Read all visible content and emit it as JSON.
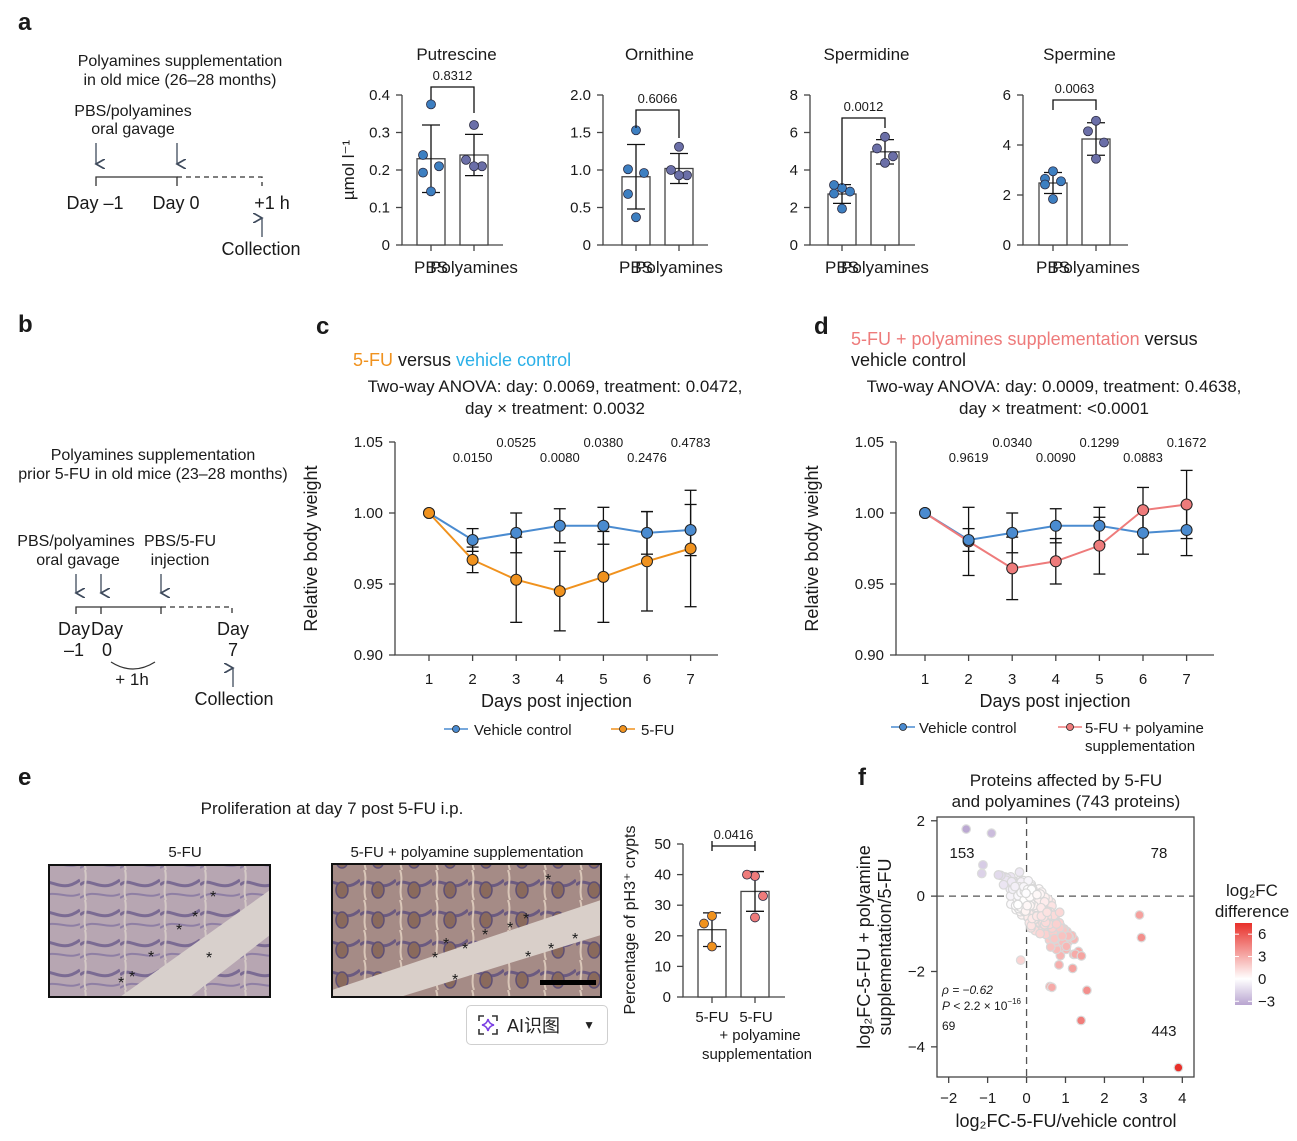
{
  "panels": {
    "a": {
      "label": "a",
      "schematic": {
        "title_line1": "Polyamines supplementation",
        "title_line2": "in old mice (26–28 months)",
        "gavage_line1": "PBS/polyamines",
        "gavage_line2": "oral gavage",
        "day_minus1": "Day –1",
        "day0": "Day 0",
        "plus1h": "+1 h",
        "collection": "Collection"
      }
    },
    "b": {
      "label": "b",
      "schematic": {
        "title_line1": "Polyamines supplementation",
        "title_line2": "prior 5-FU in old mice (23–28 months)",
        "gavage_line1": "PBS/polyamines",
        "gavage_line2": "oral gavage",
        "injection_line1": "PBS/5-FU",
        "injection_line2": "injection",
        "day_label": "Day",
        "day_minus1": "–1",
        "day0": "0",
        "day7": "7",
        "plus1h": "+ 1h",
        "collection": "Collection"
      }
    },
    "c": {
      "label": "c",
      "title_part1": "5-FU",
      "title_part2": " versus ",
      "title_part3": "vehicle control",
      "anova_line1": "Two-way ANOVA: day: 0.0069, treatment: 0.0472,",
      "anova_line2": "day × treatment: 0.0032"
    },
    "d": {
      "label": "d",
      "title_part1": "5-FU + polyamines supplementation",
      "title_part2": " versus",
      "title_part3": "vehicle control",
      "anova_line1": "Two-way ANOVA: day: 0.0009, treatment: 0.4638,",
      "anova_line2": "day × treatment: <0.0001"
    },
    "e": {
      "label": "e",
      "title": "Proliferation at day 7 post 5-FU i.p.",
      "image_left_label": "5-FU",
      "image_right_label": "5-FU + polyamine supplementation"
    },
    "f": {
      "label": "f"
    }
  },
  "colors": {
    "pbs": "#3d7fc1",
    "polyamines": "#6b6fa8",
    "vehicle": "#4a8bd0",
    "fu": "#f0921e",
    "fu_poly": "#ee7b7b",
    "title_orange": "#f0921e",
    "title_blue": "#2bb0e8",
    "title_pink": "#ee7b7b"
  },
  "overlay": {
    "ai_button_label": "AI识图",
    "ai_button_icon": "sparkle-scan-icon",
    "ai_button_chevron": "chevron-down-icon"
  },
  "chart_data": [
    {
      "id": "putrescine",
      "type": "bar",
      "title": "Putrescine",
      "ylabel": "µmol l⁻¹",
      "categories": [
        "PBS",
        "Polyamines"
      ],
      "values": [
        0.23,
        0.24
      ],
      "errors": [
        0.09,
        0.055
      ],
      "points": [
        [
          0.375,
          0.24,
          0.21,
          0.193,
          0.143
        ],
        [
          0.32,
          0.227,
          0.21,
          0.21
        ]
      ],
      "ylim": [
        0,
        0.4
      ],
      "yticks": [
        "0",
        "0.1",
        "0.2",
        "0.3",
        "0.4"
      ],
      "tickvals": [
        0,
        0.1,
        0.2,
        0.3,
        0.4
      ],
      "pvalue": "0.8312"
    },
    {
      "id": "ornithine",
      "type": "bar",
      "title": "Ornithine",
      "ylabel": "",
      "categories": [
        "PBS",
        "Polyamines"
      ],
      "values": [
        0.91,
        1.02
      ],
      "errors": [
        0.43,
        0.2
      ],
      "points": [
        [
          1.53,
          1.01,
          0.96,
          0.68,
          0.37
        ],
        [
          1.31,
          1.0,
          0.93,
          0.93
        ]
      ],
      "ylim": [
        0,
        2.0
      ],
      "yticks": [
        "0",
        "0.5",
        "1.0",
        "1.5",
        "2.0"
      ],
      "tickvals": [
        0,
        0.5,
        1.0,
        1.5,
        2.0
      ],
      "pvalue": "0.6066"
    },
    {
      "id": "spermidine",
      "type": "bar",
      "title": "Spermidine",
      "ylabel": "",
      "categories": [
        "PBS",
        "Polyamines"
      ],
      "values": [
        2.72,
        4.97
      ],
      "errors": [
        0.5,
        0.65
      ],
      "points": [
        [
          3.04,
          3.2,
          2.85,
          2.74,
          1.94
        ],
        [
          5.77,
          5.15,
          4.73,
          4.38
        ]
      ],
      "ylim": [
        0,
        8
      ],
      "yticks": [
        "0",
        "2",
        "4",
        "6",
        "8"
      ],
      "tickvals": [
        0,
        2,
        4,
        6,
        8
      ],
      "pvalue": "0.0012"
    },
    {
      "id": "spermine",
      "type": "bar",
      "title": "Spermine",
      "ylabel": "",
      "categories": [
        "PBS",
        "Polyamines"
      ],
      "values": [
        2.48,
        4.24
      ],
      "errors": [
        0.42,
        0.65
      ],
      "points": [
        [
          2.95,
          2.65,
          2.55,
          2.42,
          1.84
        ],
        [
          4.97,
          4.55,
          4.1,
          3.45
        ]
      ],
      "ylim": [
        0,
        6
      ],
      "yticks": [
        "0",
        "2",
        "4",
        "6"
      ],
      "tickvals": [
        0,
        2,
        4,
        6
      ],
      "pvalue": "0.0063"
    },
    {
      "id": "body_weight_5fu",
      "type": "line",
      "xlabel": "Days post injection",
      "ylabel": "Relative body weight",
      "x": [
        1,
        2,
        3,
        4,
        5,
        6,
        7
      ],
      "xticks": [
        "1",
        "2",
        "3",
        "4",
        "5",
        "6",
        "7"
      ],
      "ylim": [
        0.9,
        1.05
      ],
      "yticks": [
        "0.90",
        "0.95",
        "1.00",
        "1.05"
      ],
      "tickvals": [
        0.9,
        0.95,
        1.0,
        1.05
      ],
      "series": [
        {
          "name": "Vehicle control",
          "color_key": "vehicle",
          "values": [
            1.0,
            0.981,
            0.986,
            0.991,
            0.991,
            0.986,
            0.988
          ],
          "errors": [
            0,
            0.008,
            0.014,
            0.012,
            0.013,
            0.015,
            0.018
          ]
        },
        {
          "name": "5-FU",
          "color_key": "fu",
          "values": [
            1.0,
            0.967,
            0.953,
            0.945,
            0.955,
            0.966,
            0.975
          ],
          "errors": [
            0,
            0.009,
            0.03,
            0.028,
            0.032,
            0.035,
            0.041
          ]
        }
      ],
      "pvalues": [
        "0.0150",
        "0.0525",
        "0.0080",
        "0.0380",
        "0.2476",
        "0.4783"
      ],
      "legend": [
        "Vehicle control",
        "5-FU"
      ],
      "legend_placement": "bottom"
    },
    {
      "id": "body_weight_5fu_poly",
      "type": "line",
      "xlabel": "Days post injection",
      "ylabel": "Relative body weight",
      "x": [
        1,
        2,
        3,
        4,
        5,
        6,
        7
      ],
      "xticks": [
        "1",
        "2",
        "3",
        "4",
        "5",
        "6",
        "7"
      ],
      "ylim": [
        0.9,
        1.05
      ],
      "yticks": [
        "0.90",
        "0.95",
        "1.00",
        "1.05"
      ],
      "tickvals": [
        0.9,
        0.95,
        1.0,
        1.05
      ],
      "series": [
        {
          "name": "Vehicle control",
          "color_key": "vehicle",
          "values": [
            1.0,
            0.981,
            0.986,
            0.991,
            0.991,
            0.986,
            0.988
          ],
          "errors": [
            0,
            0.008,
            0.014,
            0.012,
            0.013,
            0.015,
            0.018
          ]
        },
        {
          "name": "5-FU + polyamine supplementation",
          "color_key": "fu_poly",
          "values": [
            1.0,
            0.98,
            0.961,
            0.966,
            0.977,
            1.002,
            1.006
          ],
          "errors": [
            0,
            0.024,
            0.022,
            0.016,
            0.02,
            0.016,
            0.024
          ]
        }
      ],
      "pvalues": [
        "0.9619",
        "0.0340",
        "0.0090",
        "0.1299",
        "0.0883",
        "0.1672"
      ],
      "legend": [
        "Vehicle control",
        "5-FU + polyamine",
        "supplementation"
      ],
      "legend_placement": "bottom"
    },
    {
      "id": "ph3_crypts",
      "type": "bar",
      "ylabel": "Percentage of pH3⁺ crypts",
      "categories": [
        "5-FU",
        "5-FU"
      ],
      "category_sublabels": [
        "+ polyamine",
        "supplementation"
      ],
      "values": [
        22,
        34.5
      ],
      "errors": [
        5.5,
        6.5
      ],
      "points": [
        [
          26.5,
          24,
          16.5
        ],
        [
          39.5,
          40,
          33,
          26
        ]
      ],
      "ylim": [
        0,
        50
      ],
      "yticks": [
        "0",
        "10",
        "20",
        "30",
        "40",
        "50"
      ],
      "tickvals": [
        0,
        10,
        20,
        30,
        40,
        50
      ],
      "pvalue": "0.0416"
    },
    {
      "id": "proteins_scatter",
      "type": "scatter",
      "title_line1": "Proteins affected by 5-FU",
      "title_line2": "and polyamines (743 proteins)",
      "xlabel": "log₂FC-5-FU/vehicle control",
      "ylabel_line1": "log₂FC-5-FU + polyamine",
      "ylabel_line2": "supplementation/5-FU",
      "xlim": [
        -2.3,
        4.3
      ],
      "ylim": [
        -4.8,
        2.1
      ],
      "xticks": [
        "−2",
        "−1",
        "0",
        "1",
        "2",
        "3",
        "4"
      ],
      "xtickvals": [
        -2,
        -1,
        0,
        1,
        2,
        3,
        4
      ],
      "yticks": [
        "−4",
        "−2",
        "0",
        "2"
      ],
      "ytickvals": [
        -4,
        -2,
        0,
        2
      ],
      "quadrant_counts": {
        "top_left": "153",
        "top_right": "78",
        "bottom_left": "69",
        "bottom_right": "443"
      },
      "stats_rho": "ρ = −0.62",
      "stats_p": "P < 2.2 × 10",
      "stats_p_exp": "−16",
      "colorbar_title_line1": "log₂FC",
      "colorbar_title_line2": "difference",
      "colorbar_ticks": [
        "6",
        "3",
        "0",
        "−3"
      ],
      "colorbar_tickvals": [
        6,
        3,
        0,
        -3
      ],
      "colorbar_range": [
        -3.5,
        7.5
      ],
      "outliers": [
        [
          -1.55,
          1.78
        ],
        [
          -0.9,
          1.67
        ],
        [
          -1.12,
          0.83
        ],
        [
          -1.15,
          0.6
        ],
        [
          2.9,
          -0.5
        ],
        [
          2.95,
          -1.1
        ],
        [
          0.6,
          -2.4
        ],
        [
          0.65,
          -2.42
        ],
        [
          1.55,
          -2.5
        ],
        [
          1.4,
          -3.3
        ],
        [
          3.9,
          -4.55
        ],
        [
          -0.15,
          -1.7
        ]
      ],
      "cloud_center": [
        0.3,
        -0.4
      ],
      "cloud_slope": -1.0,
      "cloud_count": 743
    }
  ]
}
